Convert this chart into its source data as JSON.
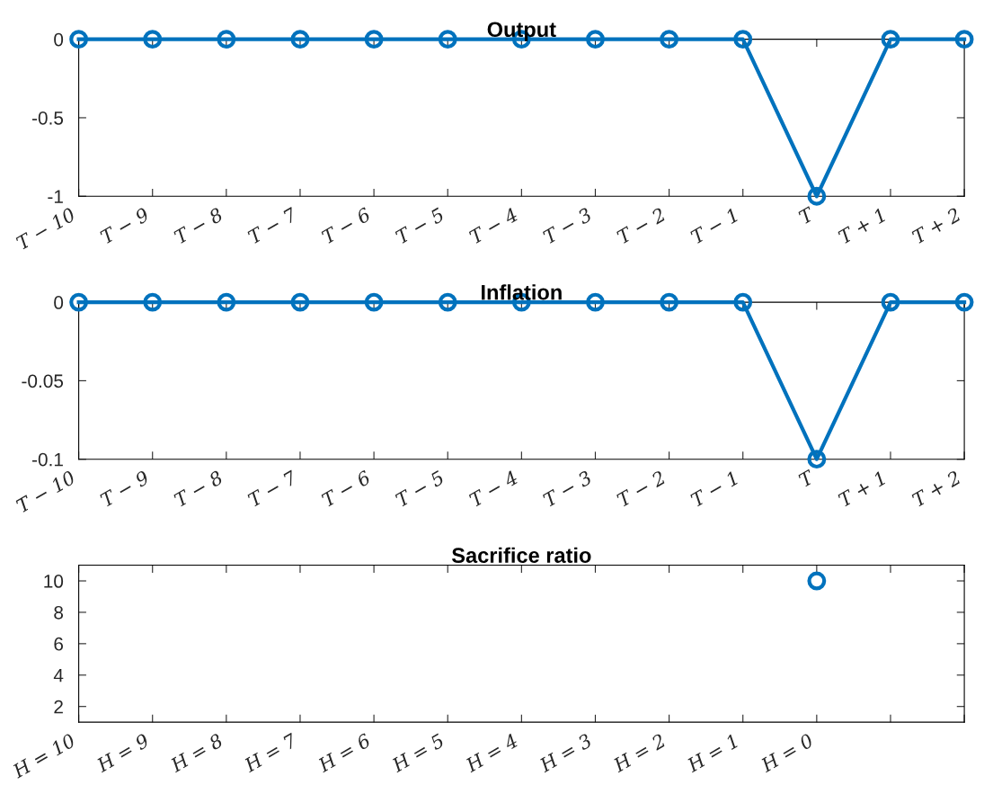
{
  "chart_data": [
    {
      "type": "line",
      "title": "Output",
      "categories": [
        "T − 10",
        "T − 9",
        "T − 8",
        "T − 7",
        "T − 6",
        "T − 5",
        "T − 4",
        "T − 3",
        "T − 2",
        "T − 1",
        "T",
        "T + 1",
        "T + 2"
      ],
      "series": [
        {
          "color": "#0072bd",
          "values": [
            0,
            0,
            0,
            0,
            0,
            0,
            0,
            0,
            0,
            0,
            -1,
            0,
            0
          ]
        }
      ],
      "ylim": [
        -1,
        0
      ],
      "yticks": [
        -1,
        -0.5,
        0
      ],
      "marker": "circle",
      "line_style": "solid",
      "grid": false
    },
    {
      "type": "line",
      "title": "Inflation",
      "categories": [
        "T − 10",
        "T − 9",
        "T − 8",
        "T − 7",
        "T − 6",
        "T − 5",
        "T − 4",
        "T − 3",
        "T − 2",
        "T − 1",
        "T",
        "T + 1",
        "T + 2"
      ],
      "series": [
        {
          "color": "#0072bd",
          "values": [
            0,
            0,
            0,
            0,
            0,
            0,
            0,
            0,
            0,
            0,
            -0.1,
            0,
            0
          ]
        }
      ],
      "ylim": [
        -0.1,
        0
      ],
      "yticks": [
        -0.1,
        -0.05,
        0
      ],
      "marker": "circle",
      "line_style": "solid",
      "grid": false
    },
    {
      "type": "line",
      "title": "Sacrifice ratio",
      "categories": [
        "H = 10",
        "H = 9",
        "H = 8",
        "H = 7",
        "H = 6",
        "H = 5",
        "H = 4",
        "H = 3",
        "H = 2",
        "H = 1",
        "H = 0",
        null,
        null
      ],
      "series": [
        {
          "color": "#0072bd",
          "values": [
            null,
            null,
            null,
            null,
            null,
            null,
            null,
            null,
            null,
            null,
            10,
            null,
            null
          ]
        }
      ],
      "ylim": [
        1,
        11
      ],
      "yticks": [
        2,
        4,
        6,
        8,
        10
      ],
      "marker": "circle",
      "line_style": "solid",
      "grid": false
    }
  ]
}
